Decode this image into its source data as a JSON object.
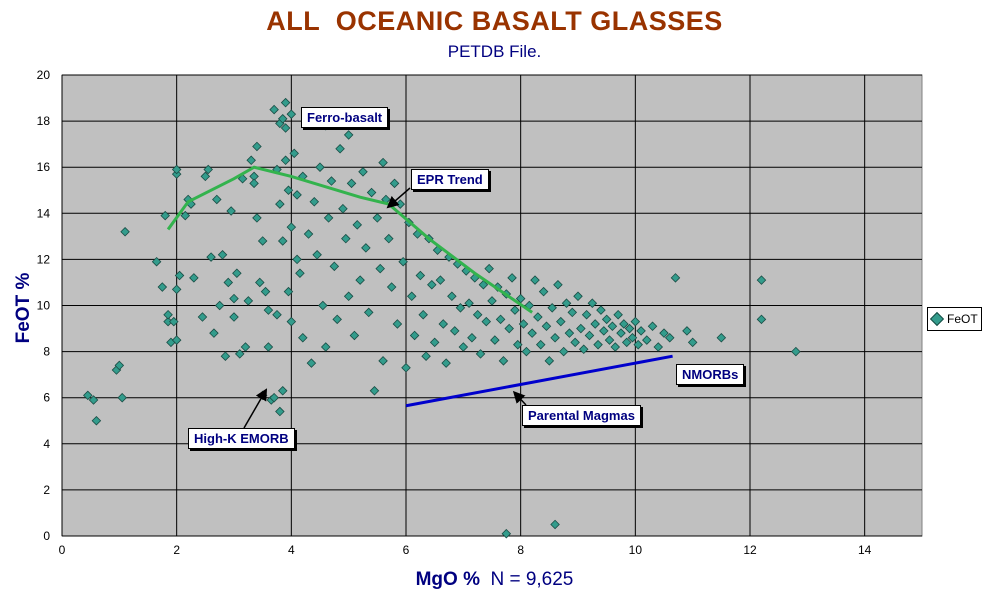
{
  "header": {
    "title": "ALL  OCEANIC BASALT GLASSES",
    "subtitle": "PETDB File."
  },
  "x_axis": {
    "label": "MgO %",
    "extra": "N = 9,625"
  },
  "y_axis": {
    "label": "FeOT %"
  },
  "legend": {
    "entries": [
      "FeOT"
    ]
  },
  "callouts": {
    "ferro_basalt": "Ferro-basalt",
    "epr_trend": "EPR Trend",
    "nmorbs": "NMORBs",
    "parental_magmas": "Parental Magmas",
    "high_k_emorb": "High-K EMORB"
  },
  "colors": {
    "plot_background": "#c0c0c0",
    "marker_fill": "#339c8c",
    "marker_edge": "#1a4d45",
    "green_trend": "#33b34d",
    "blue_line": "#0000cc",
    "title": "#993300",
    "axis_text": "#000080"
  },
  "chart_data": {
    "type": "scatter",
    "title": "ALL  OCEANIC BASALT GLASSES",
    "subtitle": "PETDB File.",
    "xlabel": "MgO %",
    "ylabel": "FeOT %",
    "xlim": [
      0,
      15
    ],
    "ylim": [
      0,
      20
    ],
    "xticks": [
      0,
      2,
      4,
      6,
      8,
      10,
      12,
      14
    ],
    "yticks": [
      0,
      2,
      4,
      6,
      8,
      10,
      12,
      14,
      16,
      18,
      20
    ],
    "grid": true,
    "legend_position": "right",
    "series": [
      {
        "name": "FeOT",
        "marker": "diamond",
        "note_count": "N = 9,625",
        "points": [
          [
            0.45,
            6.1
          ],
          [
            0.55,
            5.9
          ],
          [
            0.6,
            5.0
          ],
          [
            0.95,
            7.2
          ],
          [
            1.0,
            7.4
          ],
          [
            1.05,
            6.0
          ],
          [
            1.1,
            13.2
          ],
          [
            1.65,
            11.9
          ],
          [
            1.75,
            10.8
          ],
          [
            1.8,
            13.9
          ],
          [
            1.85,
            9.3
          ],
          [
            1.85,
            9.6
          ],
          [
            1.9,
            8.4
          ],
          [
            1.95,
            9.3
          ],
          [
            2.0,
            8.5
          ],
          [
            2.0,
            15.7
          ],
          [
            2.0,
            15.9
          ],
          [
            2.0,
            10.7
          ],
          [
            2.05,
            11.3
          ],
          [
            2.15,
            13.9
          ],
          [
            2.2,
            14.6
          ],
          [
            2.25,
            14.4
          ],
          [
            2.3,
            11.2
          ],
          [
            2.45,
            9.5
          ],
          [
            2.5,
            15.6
          ],
          [
            2.55,
            15.9
          ],
          [
            2.6,
            12.1
          ],
          [
            2.65,
            8.8
          ],
          [
            2.7,
            14.6
          ],
          [
            2.75,
            10.0
          ],
          [
            2.8,
            12.2
          ],
          [
            2.85,
            7.8
          ],
          [
            2.9,
            11.0
          ],
          [
            2.95,
            14.1
          ],
          [
            3.0,
            10.3
          ],
          [
            3.0,
            9.5
          ],
          [
            3.05,
            11.4
          ],
          [
            3.1,
            7.9
          ],
          [
            3.15,
            15.5
          ],
          [
            3.2,
            8.2
          ],
          [
            3.25,
            10.2
          ],
          [
            3.3,
            16.3
          ],
          [
            3.35,
            15.6
          ],
          [
            3.35,
            15.3
          ],
          [
            3.4,
            16.9
          ],
          [
            3.4,
            13.8
          ],
          [
            3.45,
            11.0
          ],
          [
            3.5,
            12.8
          ],
          [
            3.5,
            6.1
          ],
          [
            3.55,
            10.6
          ],
          [
            3.6,
            9.8
          ],
          [
            3.6,
            8.2
          ],
          [
            3.65,
            5.9
          ],
          [
            3.7,
            18.5
          ],
          [
            3.7,
            6.0
          ],
          [
            3.75,
            15.9
          ],
          [
            3.75,
            9.6
          ],
          [
            3.8,
            17.9
          ],
          [
            3.8,
            14.4
          ],
          [
            3.8,
            5.4
          ],
          [
            3.85,
            18.1
          ],
          [
            3.85,
            12.8
          ],
          [
            3.85,
            6.3
          ],
          [
            3.9,
            18.8
          ],
          [
            3.9,
            17.7
          ],
          [
            3.9,
            16.3
          ],
          [
            3.95,
            15.0
          ],
          [
            3.95,
            10.6
          ],
          [
            4.0,
            18.3
          ],
          [
            4.0,
            13.4
          ],
          [
            4.0,
            9.3
          ],
          [
            4.05,
            16.6
          ],
          [
            4.1,
            14.8
          ],
          [
            4.1,
            12.0
          ],
          [
            4.15,
            11.4
          ],
          [
            4.2,
            15.6
          ],
          [
            4.2,
            8.6
          ],
          [
            4.3,
            13.1
          ],
          [
            4.35,
            7.5
          ],
          [
            4.4,
            14.5
          ],
          [
            4.45,
            12.2
          ],
          [
            4.5,
            16.0
          ],
          [
            4.55,
            10.0
          ],
          [
            4.6,
            17.8
          ],
          [
            4.6,
            8.2
          ],
          [
            4.65,
            13.8
          ],
          [
            4.7,
            15.4
          ],
          [
            4.75,
            11.7
          ],
          [
            4.8,
            9.4
          ],
          [
            4.85,
            16.8
          ],
          [
            4.9,
            14.2
          ],
          [
            4.95,
            12.9
          ],
          [
            5.0,
            17.4
          ],
          [
            5.0,
            10.4
          ],
          [
            5.05,
            15.3
          ],
          [
            5.1,
            8.7
          ],
          [
            5.15,
            13.5
          ],
          [
            5.2,
            11.1
          ],
          [
            5.25,
            15.8
          ],
          [
            5.3,
            12.5
          ],
          [
            5.35,
            9.7
          ],
          [
            5.4,
            14.9
          ],
          [
            5.45,
            6.3
          ],
          [
            5.5,
            13.8
          ],
          [
            5.55,
            11.6
          ],
          [
            5.6,
            16.2
          ],
          [
            5.6,
            7.6
          ],
          [
            5.65,
            14.6
          ],
          [
            5.7,
            12.9
          ],
          [
            5.75,
            10.8
          ],
          [
            5.8,
            15.3
          ],
          [
            5.85,
            9.2
          ],
          [
            5.9,
            14.4
          ],
          [
            5.95,
            11.9
          ],
          [
            6.0,
            7.3
          ],
          [
            6.05,
            13.6
          ],
          [
            6.1,
            10.4
          ],
          [
            6.15,
            8.7
          ],
          [
            6.2,
            13.1
          ],
          [
            6.25,
            11.3
          ],
          [
            6.3,
            9.6
          ],
          [
            6.35,
            7.8
          ],
          [
            6.4,
            12.9
          ],
          [
            6.45,
            10.9
          ],
          [
            6.5,
            8.4
          ],
          [
            6.55,
            12.4
          ],
          [
            6.6,
            11.1
          ],
          [
            6.65,
            9.2
          ],
          [
            6.7,
            7.5
          ],
          [
            6.75,
            12.1
          ],
          [
            6.8,
            10.4
          ],
          [
            6.85,
            8.9
          ],
          [
            6.9,
            11.8
          ],
          [
            6.95,
            9.9
          ],
          [
            7.0,
            8.2
          ],
          [
            7.05,
            11.5
          ],
          [
            7.1,
            10.1
          ],
          [
            7.15,
            8.6
          ],
          [
            7.2,
            11.2
          ],
          [
            7.25,
            9.6
          ],
          [
            7.3,
            7.9
          ],
          [
            7.35,
            10.9
          ],
          [
            7.4,
            9.3
          ],
          [
            7.45,
            11.6
          ],
          [
            7.5,
            10.2
          ],
          [
            7.55,
            8.5
          ],
          [
            7.6,
            10.8
          ],
          [
            7.65,
            9.4
          ],
          [
            7.7,
            7.6
          ],
          [
            7.75,
            10.5
          ],
          [
            7.8,
            9.0
          ],
          [
            7.85,
            11.2
          ],
          [
            7.9,
            9.8
          ],
          [
            7.95,
            8.3
          ],
          [
            8.0,
            10.3
          ],
          [
            8.05,
            9.2
          ],
          [
            8.1,
            8.0
          ],
          [
            8.15,
            10.0
          ],
          [
            8.2,
            8.8
          ],
          [
            8.25,
            11.1
          ],
          [
            8.3,
            9.5
          ],
          [
            8.35,
            8.3
          ],
          [
            8.4,
            10.6
          ],
          [
            8.45,
            9.1
          ],
          [
            8.5,
            7.6
          ],
          [
            8.55,
            9.9
          ],
          [
            8.6,
            8.6
          ],
          [
            8.65,
            10.9
          ],
          [
            8.7,
            9.3
          ],
          [
            8.75,
            8.0
          ],
          [
            8.8,
            10.1
          ],
          [
            8.85,
            8.8
          ],
          [
            8.9,
            9.7
          ],
          [
            8.95,
            8.4
          ],
          [
            9.0,
            10.4
          ],
          [
            9.05,
            9.0
          ],
          [
            9.1,
            8.1
          ],
          [
            9.15,
            9.6
          ],
          [
            9.2,
            8.7
          ],
          [
            9.25,
            10.1
          ],
          [
            9.3,
            9.2
          ],
          [
            9.35,
            8.3
          ],
          [
            9.4,
            9.8
          ],
          [
            9.45,
            8.9
          ],
          [
            9.5,
            9.4
          ],
          [
            9.55,
            8.5
          ],
          [
            9.6,
            9.1
          ],
          [
            9.65,
            8.2
          ],
          [
            9.7,
            9.6
          ],
          [
            9.75,
            8.8
          ],
          [
            9.8,
            9.2
          ],
          [
            9.85,
            8.4
          ],
          [
            9.9,
            9.0
          ],
          [
            9.95,
            8.6
          ],
          [
            10.0,
            9.3
          ],
          [
            10.05,
            8.3
          ],
          [
            10.1,
            8.9
          ],
          [
            10.2,
            8.5
          ],
          [
            10.3,
            9.1
          ],
          [
            10.4,
            8.2
          ],
          [
            10.5,
            8.8
          ],
          [
            10.6,
            8.6
          ],
          [
            10.7,
            11.2
          ],
          [
            10.9,
            8.9
          ],
          [
            11.0,
            8.4
          ],
          [
            11.5,
            8.6
          ],
          [
            12.2,
            11.1
          ],
          [
            12.2,
            9.4
          ],
          [
            12.8,
            8.0
          ],
          [
            7.75,
            0.1
          ],
          [
            8.6,
            0.5
          ]
        ]
      }
    ],
    "trend_lines": [
      {
        "name": "EPR Trend",
        "color": "green",
        "points": [
          [
            1.85,
            13.3
          ],
          [
            2.2,
            14.5
          ],
          [
            3.0,
            15.5
          ],
          [
            3.35,
            16.0
          ],
          [
            4.0,
            15.6
          ],
          [
            5.2,
            14.7
          ],
          [
            5.7,
            14.4
          ],
          [
            6.4,
            12.9
          ],
          [
            7.2,
            11.4
          ],
          [
            8.2,
            9.7
          ]
        ]
      },
      {
        "name": "Parental Magmas",
        "color": "blue",
        "points": [
          [
            6.0,
            5.65
          ],
          [
            10.65,
            7.8
          ]
        ]
      }
    ],
    "annotations": [
      {
        "text": "Ferro-basalt",
        "arrow": false
      },
      {
        "text": "EPR Trend",
        "arrow_to": [
          5.7,
          14.3
        ]
      },
      {
        "text": "NMORBs",
        "arrow": false
      },
      {
        "text": "Parental Magmas",
        "arrow_to": [
          7.9,
          6.2
        ]
      },
      {
        "text": "High-K EMORB",
        "arrow_to": [
          3.55,
          6.3
        ]
      }
    ]
  }
}
